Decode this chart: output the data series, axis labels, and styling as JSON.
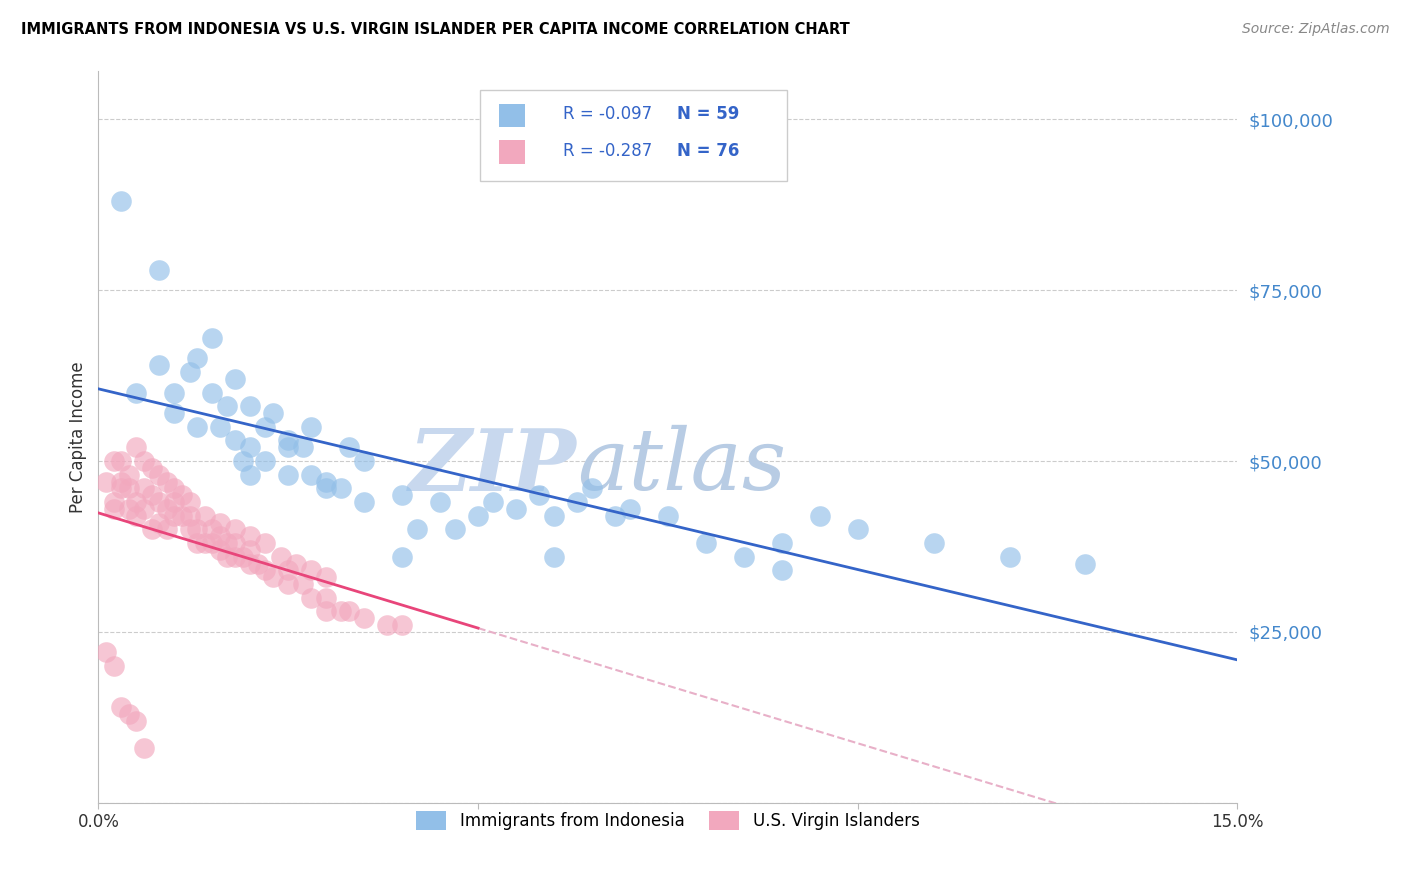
{
  "title": "IMMIGRANTS FROM INDONESIA VS U.S. VIRGIN ISLANDER PER CAPITA INCOME CORRELATION CHART",
  "source": "Source: ZipAtlas.com",
  "ylabel": "Per Capita Income",
  "yticks": [
    0,
    25000,
    50000,
    75000,
    100000
  ],
  "ytick_labels": [
    "",
    "$25,000",
    "$50,000",
    "$75,000",
    "$100,000"
  ],
  "xlim": [
    0.0,
    0.15
  ],
  "ylim": [
    0,
    107000
  ],
  "watermark_zip": "ZIP",
  "watermark_atlas": "atlas",
  "legend_r1": "-0.097",
  "legend_n1": "59",
  "legend_r2": "-0.287",
  "legend_n2": "76",
  "legend_label1": "Immigrants from Indonesia",
  "legend_label2": "U.S. Virgin Islanders",
  "color_blue": "#92bfe8",
  "color_pink": "#f2a8be",
  "line_blue": "#3464c8",
  "line_pink": "#e8457a",
  "line_dashed_color": "#e8b0c8",
  "grid_color": "#cccccc",
  "background_color": "#ffffff",
  "ytick_color": "#4488cc",
  "blue_x": [
    0.003,
    0.005,
    0.008,
    0.01,
    0.01,
    0.012,
    0.013,
    0.015,
    0.016,
    0.017,
    0.018,
    0.019,
    0.02,
    0.02,
    0.022,
    0.023,
    0.025,
    0.025,
    0.027,
    0.028,
    0.03,
    0.032,
    0.033,
    0.035,
    0.04,
    0.042,
    0.045,
    0.047,
    0.05,
    0.052,
    0.055,
    0.058,
    0.06,
    0.063,
    0.065,
    0.068,
    0.07,
    0.075,
    0.08,
    0.085,
    0.09,
    0.095,
    0.1,
    0.11,
    0.12,
    0.13,
    0.008,
    0.013,
    0.015,
    0.018,
    0.02,
    0.022,
    0.025,
    0.028,
    0.03,
    0.035,
    0.04,
    0.06,
    0.09
  ],
  "blue_y": [
    88000,
    60000,
    64000,
    60000,
    57000,
    63000,
    55000,
    60000,
    55000,
    58000,
    53000,
    50000,
    48000,
    52000,
    50000,
    57000,
    53000,
    48000,
    52000,
    55000,
    46000,
    46000,
    52000,
    50000,
    45000,
    40000,
    44000,
    40000,
    42000,
    44000,
    43000,
    45000,
    42000,
    44000,
    46000,
    42000,
    43000,
    42000,
    38000,
    36000,
    38000,
    42000,
    40000,
    38000,
    36000,
    35000,
    78000,
    65000,
    68000,
    62000,
    58000,
    55000,
    52000,
    48000,
    47000,
    44000,
    36000,
    36000,
    34000
  ],
  "pink_x": [
    0.001,
    0.002,
    0.002,
    0.003,
    0.003,
    0.004,
    0.004,
    0.005,
    0.005,
    0.006,
    0.006,
    0.007,
    0.007,
    0.008,
    0.008,
    0.009,
    0.009,
    0.01,
    0.01,
    0.011,
    0.012,
    0.012,
    0.013,
    0.013,
    0.014,
    0.015,
    0.015,
    0.016,
    0.016,
    0.017,
    0.017,
    0.018,
    0.018,
    0.019,
    0.02,
    0.02,
    0.021,
    0.022,
    0.023,
    0.025,
    0.025,
    0.027,
    0.028,
    0.03,
    0.03,
    0.032,
    0.033,
    0.035,
    0.038,
    0.04,
    0.002,
    0.003,
    0.004,
    0.005,
    0.006,
    0.007,
    0.008,
    0.009,
    0.01,
    0.011,
    0.012,
    0.014,
    0.016,
    0.018,
    0.02,
    0.022,
    0.024,
    0.026,
    0.028,
    0.03,
    0.001,
    0.002,
    0.003,
    0.004,
    0.005,
    0.006
  ],
  "pink_y": [
    47000,
    44000,
    43000,
    47000,
    46000,
    46000,
    43000,
    44000,
    42000,
    46000,
    43000,
    45000,
    40000,
    44000,
    41000,
    43000,
    40000,
    44000,
    42000,
    42000,
    40000,
    42000,
    40000,
    38000,
    38000,
    40000,
    38000,
    39000,
    37000,
    38000,
    36000,
    38000,
    36000,
    36000,
    37000,
    35000,
    35000,
    34000,
    33000,
    34000,
    32000,
    32000,
    30000,
    30000,
    28000,
    28000,
    28000,
    27000,
    26000,
    26000,
    50000,
    50000,
    48000,
    52000,
    50000,
    49000,
    48000,
    47000,
    46000,
    45000,
    44000,
    42000,
    41000,
    40000,
    39000,
    38000,
    36000,
    35000,
    34000,
    33000,
    22000,
    20000,
    14000,
    13000,
    12000,
    8000
  ]
}
